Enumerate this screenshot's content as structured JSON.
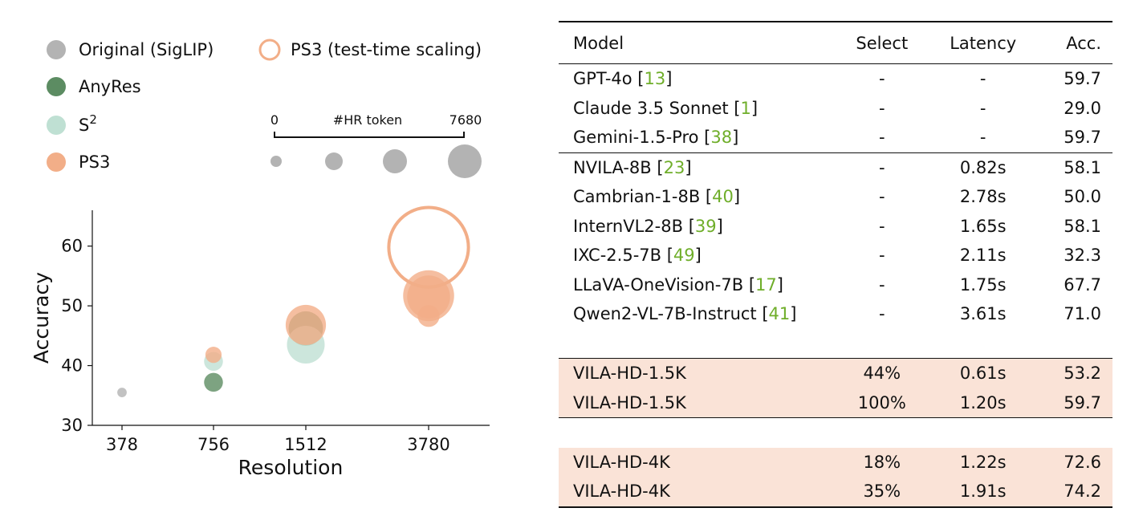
{
  "chart_data": {
    "type": "scatter",
    "xlabel": "Resolution",
    "ylabel": "Accuracy",
    "x_categories": [
      "378",
      "756",
      "1512",
      "3780"
    ],
    "ylim": [
      30,
      66
    ],
    "yticks": [
      30,
      40,
      50,
      60
    ],
    "legend": {
      "position": "top-left",
      "entries": [
        {
          "name": "Original (SigLIP)",
          "color": "#b3b3b3",
          "style": "filled"
        },
        {
          "name": "AnyRes",
          "color": "#5c8c62",
          "style": "filled"
        },
        {
          "name": "S",
          "superscript": "2",
          "color": "#bfe0d3",
          "style": "filled"
        },
        {
          "name": "PS3",
          "color": "#f2ae88",
          "style": "filled"
        },
        {
          "name": "PS3 (test-time scaling)",
          "color": "#f2ae88",
          "style": "outline"
        }
      ]
    },
    "size_legend": {
      "label": "#HR token",
      "min_label": "0",
      "max_label": "7680"
    },
    "series": [
      {
        "name": "Original (SigLIP)",
        "color": "#b3b3b3",
        "points": [
          {
            "x": "378",
            "y": 35.5,
            "tokens": 580
          }
        ]
      },
      {
        "name": "AnyRes",
        "color": "#5c8c62",
        "points": [
          {
            "x": "756",
            "y": 37.2,
            "tokens": 2300
          },
          {
            "x": "1512",
            "y": 46.2,
            "tokens": 7680
          }
        ]
      },
      {
        "name": "S2",
        "color": "#bfe0d3",
        "points": [
          {
            "x": "756",
            "y": 40.7,
            "tokens": 2300
          },
          {
            "x": "1512",
            "y": 43.5,
            "tokens": 9200
          }
        ]
      },
      {
        "name": "PS3",
        "color": "#f2ae88",
        "points": [
          {
            "x": "756",
            "y": 41.8,
            "tokens": 1700
          },
          {
            "x": "1512",
            "y": 46.8,
            "tokens": 10500
          },
          {
            "x": "3780",
            "y": 48.3,
            "tokens": 3100
          },
          {
            "x": "3780",
            "y": 51.7,
            "tokens": 16800
          },
          {
            "x": "3780",
            "y": 51.5,
            "tokens": 11900
          }
        ]
      },
      {
        "name": "PS3 (test-time scaling)",
        "color": "#f2ae88",
        "outline": true,
        "points": [
          {
            "x": "3780",
            "y": 59.8,
            "tokens": 41000
          }
        ]
      }
    ]
  },
  "table": {
    "headers": {
      "model": "Model",
      "select": "Select",
      "latency": "Latency",
      "acc": "Acc."
    },
    "groups": [
      {
        "highlight": false,
        "rows": [
          {
            "model": "GPT-4o",
            "ref": "13",
            "select": "-",
            "latency": "-",
            "acc": "59.7"
          },
          {
            "model": "Claude 3.5 Sonnet",
            "ref": "1",
            "select": "-",
            "latency": "-",
            "acc": "29.0"
          },
          {
            "model": "Gemini-1.5-Pro",
            "ref": "38",
            "select": "-",
            "latency": "-",
            "acc": "59.7"
          }
        ]
      },
      {
        "highlight": false,
        "rows": [
          {
            "model": "NVILA-8B",
            "ref": "23",
            "select": "-",
            "latency": "0.82s",
            "acc": "58.1"
          },
          {
            "model": "Cambrian-1-8B",
            "ref": "40",
            "select": "-",
            "latency": "2.78s",
            "acc": "50.0"
          },
          {
            "model": "InternVL2-8B",
            "ref": "39",
            "select": "-",
            "latency": "1.65s",
            "acc": "58.1"
          },
          {
            "model": "IXC-2.5-7B",
            "ref": "49",
            "select": "-",
            "latency": "2.11s",
            "acc": "32.3"
          },
          {
            "model": "LLaVA-OneVision-7B",
            "ref": "17",
            "select": "-",
            "latency": "1.75s",
            "acc": "67.7"
          },
          {
            "model": "Qwen2-VL-7B-Instruct",
            "ref": "41",
            "select": "-",
            "latency": "3.61s",
            "acc": "71.0"
          }
        ]
      },
      {
        "highlight": true,
        "rows": [
          {
            "model": "VILA-HD-1.5K",
            "select": "44%",
            "latency": "0.61s",
            "acc": "53.2"
          },
          {
            "model": "VILA-HD-1.5K",
            "select": "100%",
            "latency": "1.20s",
            "acc": "59.7"
          }
        ]
      },
      {
        "highlight": true,
        "rows": [
          {
            "model": "VILA-HD-4K",
            "select": "18%",
            "latency": "1.22s",
            "acc": "72.6"
          },
          {
            "model": "VILA-HD-4K",
            "select": "35%",
            "latency": "1.91s",
            "acc": "74.2",
            "bold": true
          }
        ]
      }
    ]
  }
}
